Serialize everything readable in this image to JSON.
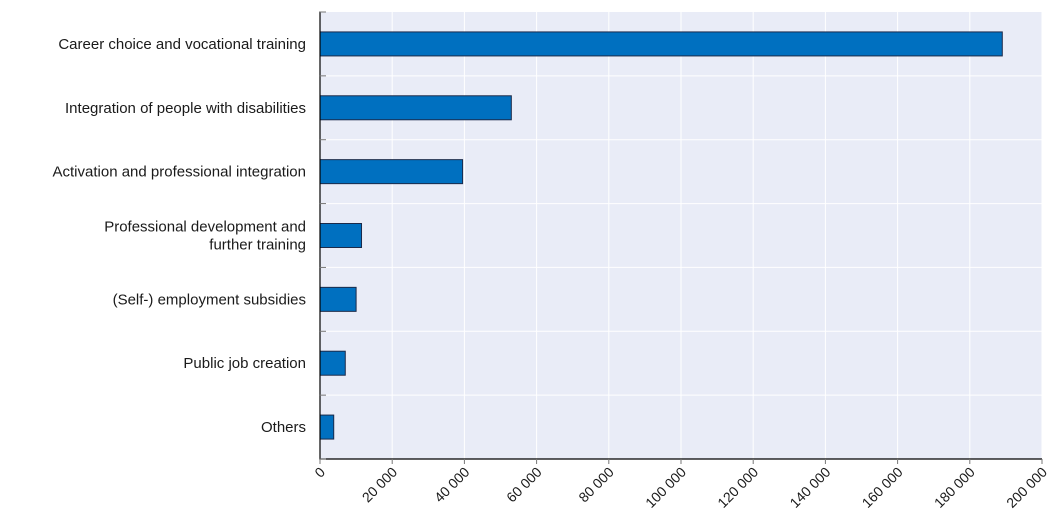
{
  "chart_data": {
    "type": "bar",
    "orientation": "horizontal",
    "title": "",
    "xlabel": "",
    "ylabel": "",
    "categories": [
      "Career choice and vocational training",
      "Integration of people with disabilities",
      "Activation and professional integration",
      "Professional development and\nfurther training",
      "(Self-) employment subsidies",
      "Public job creation",
      "Others"
    ],
    "values": [
      189000,
      53000,
      39500,
      11500,
      10000,
      7000,
      3800
    ],
    "xlim": [
      0,
      200000
    ],
    "x_ticks": [
      0,
      20000,
      40000,
      60000,
      80000,
      100000,
      120000,
      140000,
      160000,
      180000,
      200000
    ],
    "x_tick_labels": [
      "0",
      "20 000",
      "40 000",
      "60 000",
      "80 000",
      "100 000",
      "120 000",
      "140 000",
      "160 000",
      "180 000",
      "200 000"
    ],
    "grid": true,
    "legend": "none"
  },
  "colors": {
    "bar_fill": "#0070c0",
    "bar_stroke": "#1b2a4a",
    "plot_background": "#e9ecf7",
    "gridline": "#ffffff",
    "axis": "#000000",
    "tick_mark": "#777777"
  }
}
